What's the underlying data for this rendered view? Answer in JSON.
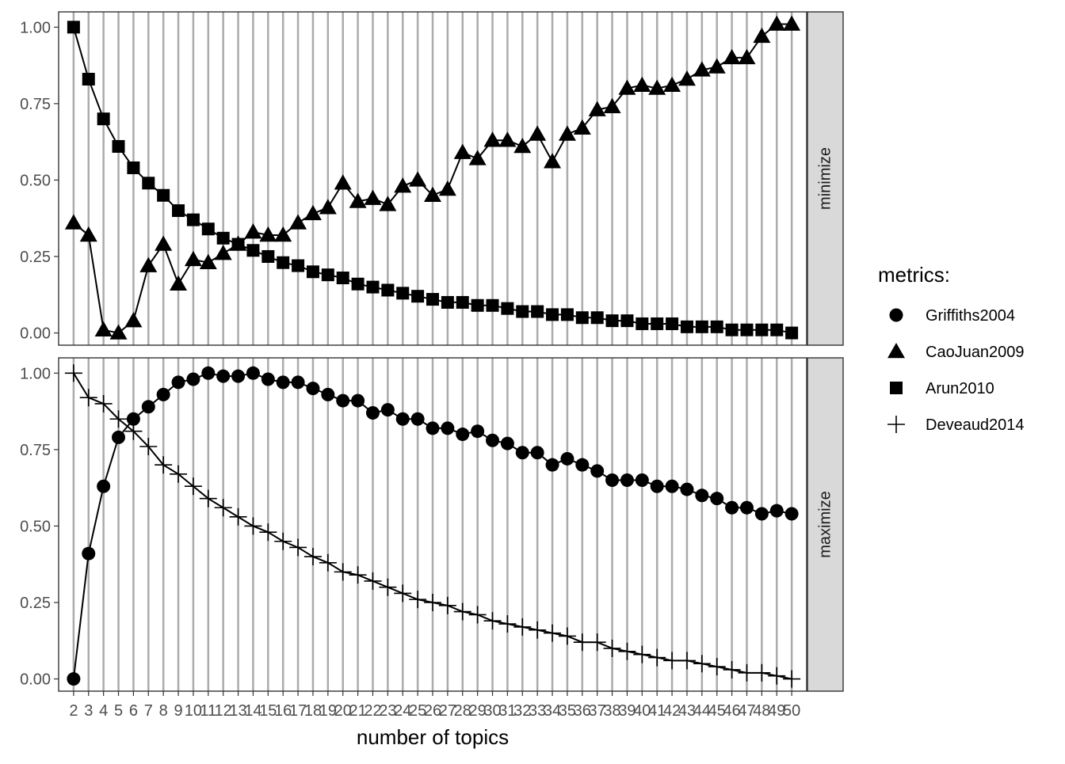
{
  "chart_data": {
    "type": "line",
    "xlabel": "number of topics",
    "ylabel": "",
    "title": "",
    "grid": "vertical lines at each x",
    "legend": {
      "title": "metrics:",
      "placement": "right",
      "entries": [
        {
          "name": "Griffiths2004",
          "shape": "circle"
        },
        {
          "name": "CaoJuan2009",
          "shape": "triangle"
        },
        {
          "name": "Arun2010",
          "shape": "square"
        },
        {
          "name": "Deveaud2014",
          "shape": "cross"
        }
      ]
    },
    "x": [
      2,
      3,
      4,
      5,
      6,
      7,
      8,
      9,
      10,
      11,
      12,
      13,
      14,
      15,
      16,
      17,
      18,
      19,
      20,
      21,
      22,
      23,
      24,
      25,
      26,
      27,
      28,
      29,
      30,
      31,
      32,
      33,
      34,
      35,
      36,
      37,
      38,
      39,
      40,
      41,
      42,
      43,
      44,
      45,
      46,
      47,
      48,
      49,
      50
    ],
    "xlim": [
      1,
      51
    ],
    "ylim": [
      -0.04,
      1.05
    ],
    "yticks": [
      "0.00",
      "0.25",
      "0.50",
      "0.75",
      "1.00"
    ],
    "panels": [
      {
        "strip": "minimize",
        "series": [
          {
            "name": "CaoJuan2009",
            "shape": "triangle",
            "values": [
              0.36,
              0.32,
              0.01,
              0.0,
              0.04,
              0.22,
              0.29,
              0.16,
              0.24,
              0.23,
              0.26,
              0.29,
              0.33,
              0.32,
              0.32,
              0.36,
              0.39,
              0.41,
              0.49,
              0.43,
              0.44,
              0.42,
              0.48,
              0.5,
              0.45,
              0.47,
              0.59,
              0.57,
              0.63,
              0.63,
              0.61,
              0.65,
              0.56,
              0.65,
              0.67,
              0.73,
              0.74,
              0.8,
              0.81,
              0.8,
              0.81,
              0.83,
              0.86,
              0.87,
              0.9,
              0.9,
              0.97,
              1.01,
              1.01
            ]
          },
          {
            "name": "Arun2010",
            "shape": "square",
            "values": [
              1.0,
              0.83,
              0.7,
              0.61,
              0.54,
              0.49,
              0.45,
              0.4,
              0.37,
              0.34,
              0.31,
              0.29,
              0.27,
              0.25,
              0.23,
              0.22,
              0.2,
              0.19,
              0.18,
              0.16,
              0.15,
              0.14,
              0.13,
              0.12,
              0.11,
              0.1,
              0.1,
              0.09,
              0.09,
              0.08,
              0.07,
              0.07,
              0.06,
              0.06,
              0.05,
              0.05,
              0.04,
              0.04,
              0.03,
              0.03,
              0.03,
              0.02,
              0.02,
              0.02,
              0.01,
              0.01,
              0.01,
              0.01,
              0.0
            ]
          }
        ]
      },
      {
        "strip": "maximize",
        "series": [
          {
            "name": "Griffiths2004",
            "shape": "circle",
            "values": [
              0.0,
              0.41,
              0.63,
              0.79,
              0.85,
              0.89,
              0.93,
              0.97,
              0.98,
              1.0,
              0.99,
              0.99,
              1.0,
              0.98,
              0.97,
              0.97,
              0.95,
              0.93,
              0.91,
              0.91,
              0.87,
              0.88,
              0.85,
              0.85,
              0.82,
              0.82,
              0.8,
              0.81,
              0.78,
              0.77,
              0.74,
              0.74,
              0.7,
              0.72,
              0.7,
              0.68,
              0.65,
              0.65,
              0.65,
              0.63,
              0.63,
              0.62,
              0.6,
              0.59,
              0.56,
              0.56,
              0.54,
              0.55,
              0.54
            ]
          },
          {
            "name": "Deveaud2014",
            "shape": "cross",
            "values": [
              1.0,
              0.92,
              0.9,
              0.85,
              0.81,
              0.76,
              0.7,
              0.67,
              0.63,
              0.59,
              0.56,
              0.53,
              0.5,
              0.48,
              0.45,
              0.43,
              0.4,
              0.38,
              0.35,
              0.34,
              0.32,
              0.3,
              0.28,
              0.26,
              0.25,
              0.24,
              0.22,
              0.21,
              0.19,
              0.18,
              0.17,
              0.16,
              0.15,
              0.14,
              0.12,
              0.12,
              0.1,
              0.09,
              0.08,
              0.07,
              0.06,
              0.06,
              0.05,
              0.04,
              0.03,
              0.02,
              0.02,
              0.01,
              0.0
            ]
          }
        ]
      }
    ]
  }
}
